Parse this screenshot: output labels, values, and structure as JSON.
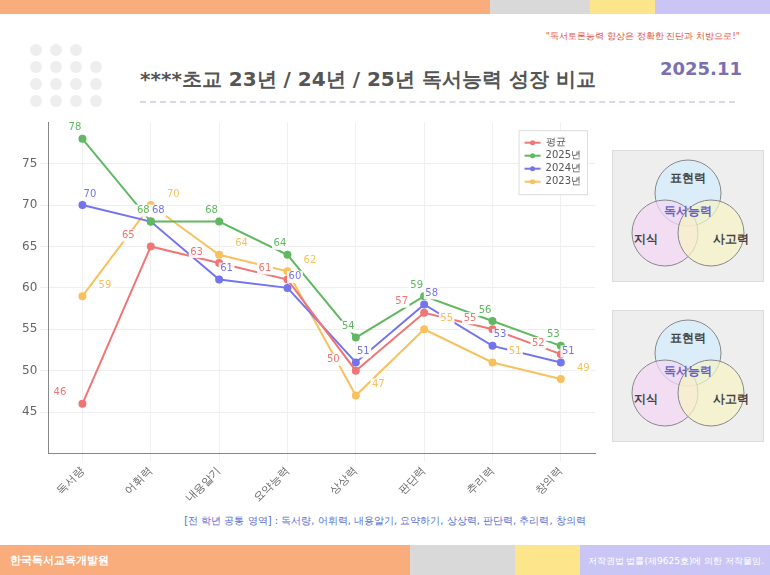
{
  "header": {
    "slogan": "\"독서토론능력 향상은 정확한 진단과 처방으로!\"",
    "title": "****초교  23년 / 24년 / 25년 독서능력 성장 비교",
    "date": "2025.11"
  },
  "chart_data": {
    "type": "line",
    "categories": [
      "독서량",
      "어휘력",
      "내용알기",
      "요약능력",
      "상상력",
      "판단력",
      "추리력",
      "창의력"
    ],
    "series": [
      {
        "name": "평균",
        "color": "#f07575",
        "values": [
          46,
          65,
          63,
          61,
          50,
          57,
          55,
          52
        ]
      },
      {
        "name": "2025년",
        "color": "#62b862",
        "values": [
          78,
          68,
          68,
          64,
          54,
          59,
          56,
          53
        ]
      },
      {
        "name": "2024년",
        "color": "#7474ee",
        "values": [
          70,
          68,
          61,
          60,
          51,
          58,
          53,
          51
        ]
      },
      {
        "name": "2023년",
        "color": "#f8c15e",
        "values": [
          59,
          70,
          64,
          62,
          47,
          55,
          51,
          49
        ]
      }
    ],
    "ylim": [
      40,
      80
    ],
    "yticks": [
      45,
      50,
      55,
      60,
      65,
      70,
      75
    ],
    "grid": true,
    "legend": "upper right",
    "data_labels": true,
    "marker": "circle"
  },
  "diagrams": [
    {
      "top": "표현력",
      "center": "독서능력",
      "left": "지식",
      "right": "사고력"
    },
    {
      "top": "표현력",
      "center": "독서능력",
      "left": "지식",
      "right": "사고력"
    }
  ],
  "caption": "[전 학년 공통 영역] :  독서량, 어휘력, 내용알기, 요약하기, 상상력, 판단력, 추리력, 창의력",
  "footer": {
    "left": "한국독서교육개발원",
    "right": "저작권법 법률(제9625호)에 의한 저작물임."
  }
}
